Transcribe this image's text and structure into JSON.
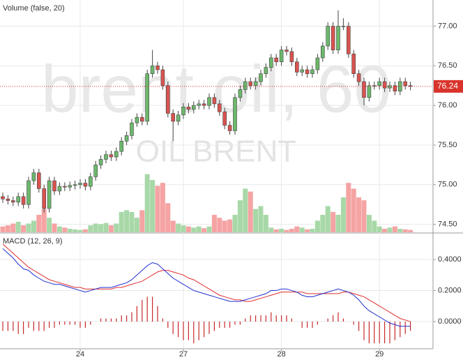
{
  "chart_data": {
    "type": "candlestick",
    "title": "Volume (false, 20)",
    "watermark": "brent oil, 60",
    "watermark_subtitle": "OIL BRENT",
    "macd_title": "MACD (12, 26, 9)",
    "categories": [
      null,
      null,
      null,
      null,
      null,
      null,
      null,
      null,
      null,
      null,
      null,
      null,
      null,
      null,
      null,
      "24",
      null,
      null,
      null,
      null,
      null,
      null,
      null,
      null,
      null,
      null,
      null,
      null,
      null,
      null,
      null,
      null,
      null,
      null,
      null,
      "27",
      null,
      null,
      null,
      null,
      null,
      null,
      null,
      null,
      null,
      null,
      null,
      null,
      null,
      null,
      null,
      null,
      null,
      null,
      "28",
      null,
      null,
      null,
      null,
      null,
      null,
      null,
      null,
      null,
      null,
      null,
      null,
      null,
      null,
      null,
      null,
      null,
      null,
      "29",
      null,
      null,
      null,
      null,
      null,
      null
    ],
    "open": [
      74.85,
      74.82,
      74.8,
      74.78,
      74.85,
      74.75,
      75.05,
      75.15,
      74.95,
      74.7,
      75.05,
      74.92,
      74.98,
      74.97,
      74.99,
      75.0,
      75.02,
      74.98,
      75.1,
      75.25,
      75.32,
      75.38,
      75.35,
      75.42,
      75.55,
      75.62,
      75.78,
      75.85,
      75.8,
      76.4,
      76.5,
      76.45,
      76.25,
      75.9,
      75.8,
      75.88,
      75.98,
      75.95,
      76.0,
      76.02,
      76.0,
      76.1,
      76.02,
      75.92,
      75.75,
      75.68,
      76.1,
      76.2,
      76.3,
      76.25,
      76.3,
      76.4,
      76.48,
      76.6,
      76.55,
      76.7,
      76.68,
      76.55,
      76.42,
      76.45,
      76.4,
      76.45,
      76.6,
      76.75,
      77.0,
      76.7,
      77.0,
      77.0,
      76.65,
      76.4,
      76.3,
      76.1,
      76.25,
      76.25,
      76.3,
      76.22,
      76.25,
      76.18,
      76.3,
      76.25
    ],
    "high": [
      74.9,
      74.87,
      74.85,
      74.9,
      74.9,
      75.1,
      75.2,
      75.2,
      75.0,
      75.1,
      75.1,
      75.03,
      75.03,
      75.04,
      75.05,
      75.07,
      75.07,
      75.15,
      75.3,
      75.37,
      75.43,
      75.43,
      75.47,
      75.6,
      75.67,
      75.83,
      75.9,
      75.9,
      76.45,
      76.7,
      76.55,
      76.5,
      76.3,
      75.95,
      75.93,
      76.03,
      76.03,
      76.05,
      76.07,
      76.07,
      76.15,
      76.15,
      76.07,
      75.97,
      75.8,
      76.15,
      76.25,
      76.35,
      76.35,
      76.35,
      76.45,
      76.53,
      76.65,
      76.65,
      76.75,
      76.75,
      76.73,
      76.6,
      76.5,
      76.5,
      76.5,
      76.65,
      76.8,
      77.05,
      77.05,
      77.2,
      77.1,
      77.05,
      76.7,
      76.45,
      76.35,
      76.3,
      76.3,
      76.35,
      76.35,
      76.3,
      76.3,
      76.35,
      76.35,
      76.3
    ],
    "low": [
      74.77,
      74.75,
      74.73,
      74.73,
      74.7,
      74.7,
      75.0,
      74.9,
      74.65,
      74.65,
      74.87,
      74.87,
      74.92,
      74.92,
      74.94,
      74.95,
      74.93,
      74.93,
      75.05,
      75.2,
      75.27,
      75.3,
      75.3,
      75.37,
      75.5,
      75.57,
      75.73,
      75.75,
      75.75,
      76.35,
      76.4,
      76.2,
      75.85,
      75.55,
      75.75,
      75.83,
      75.9,
      75.9,
      75.95,
      75.95,
      75.95,
      75.97,
      75.87,
      75.7,
      75.63,
      75.63,
      76.05,
      76.15,
      76.2,
      76.2,
      76.25,
      76.35,
      76.43,
      76.5,
      76.5,
      76.63,
      76.5,
      76.37,
      76.37,
      76.35,
      76.35,
      76.4,
      76.55,
      76.7,
      76.65,
      76.65,
      76.95,
      76.6,
      76.35,
      76.25,
      76.0,
      76.05,
      76.2,
      76.2,
      76.17,
      76.17,
      76.13,
      76.13,
      76.2,
      76.19
    ],
    "close": [
      74.82,
      74.8,
      74.78,
      74.85,
      74.75,
      75.05,
      75.15,
      74.95,
      74.7,
      75.05,
      74.92,
      74.98,
      74.97,
      74.99,
      75.0,
      75.02,
      74.98,
      75.1,
      75.25,
      75.32,
      75.38,
      75.35,
      75.42,
      75.55,
      75.62,
      75.78,
      75.85,
      75.8,
      76.4,
      76.5,
      76.45,
      76.25,
      75.9,
      75.8,
      75.88,
      75.98,
      75.95,
      76.0,
      76.02,
      76.0,
      76.1,
      76.02,
      75.92,
      75.75,
      75.68,
      76.1,
      76.2,
      76.3,
      76.25,
      76.3,
      76.4,
      76.48,
      76.6,
      76.55,
      76.7,
      76.68,
      76.55,
      76.42,
      76.45,
      76.4,
      76.45,
      76.6,
      76.75,
      77.0,
      76.7,
      77.0,
      77.0,
      76.65,
      76.4,
      76.3,
      76.1,
      76.25,
      76.25,
      76.3,
      76.22,
      76.25,
      76.18,
      76.3,
      76.25,
      76.24
    ],
    "volume": [
      10,
      12,
      15,
      18,
      12,
      15,
      20,
      30,
      40,
      25,
      15,
      10,
      8,
      6,
      5,
      4,
      5,
      12,
      15,
      14,
      16,
      12,
      15,
      35,
      38,
      35,
      25,
      38,
      100,
      90,
      80,
      85,
      50,
      20,
      15,
      12,
      10,
      8,
      10,
      7,
      10,
      30,
      25,
      20,
      22,
      30,
      55,
      75,
      70,
      40,
      45,
      30,
      8,
      5,
      6,
      4,
      6,
      10,
      8,
      5,
      6,
      20,
      30,
      45,
      35,
      30,
      60,
      85,
      75,
      60,
      55,
      30,
      20,
      10,
      6,
      8,
      10,
      6,
      5,
      4
    ],
    "vlim": [
      0,
      120
    ],
    "macd": [
      0.47,
      0.44,
      0.41,
      0.37,
      0.34,
      0.33,
      0.3,
      0.28,
      0.26,
      0.25,
      0.24,
      0.24,
      0.23,
      0.22,
      0.21,
      0.2,
      0.19,
      0.2,
      0.21,
      0.22,
      0.22,
      0.22,
      0.23,
      0.24,
      0.25,
      0.27,
      0.3,
      0.33,
      0.36,
      0.38,
      0.37,
      0.34,
      0.31,
      0.28,
      0.26,
      0.24,
      0.22,
      0.2,
      0.19,
      0.18,
      0.17,
      0.16,
      0.15,
      0.14,
      0.13,
      0.13,
      0.13,
      0.14,
      0.15,
      0.16,
      0.17,
      0.18,
      0.2,
      0.2,
      0.21,
      0.21,
      0.2,
      0.19,
      0.17,
      0.16,
      0.16,
      0.17,
      0.18,
      0.19,
      0.2,
      0.21,
      0.2,
      0.19,
      0.17,
      0.14,
      0.1,
      0.07,
      0.05,
      0.03,
      0.01,
      -0.01,
      -0.02,
      -0.03,
      -0.03,
      -0.03
    ],
    "signal": [
      0.5,
      0.47,
      0.44,
      0.41,
      0.38,
      0.35,
      0.33,
      0.31,
      0.29,
      0.27,
      0.26,
      0.25,
      0.24,
      0.23,
      0.22,
      0.22,
      0.21,
      0.21,
      0.21,
      0.21,
      0.21,
      0.21,
      0.22,
      0.22,
      0.23,
      0.24,
      0.25,
      0.26,
      0.28,
      0.3,
      0.32,
      0.33,
      0.33,
      0.32,
      0.31,
      0.3,
      0.28,
      0.27,
      0.25,
      0.23,
      0.21,
      0.19,
      0.17,
      0.16,
      0.15,
      0.14,
      0.14,
      0.13,
      0.13,
      0.14,
      0.15,
      0.16,
      0.17,
      0.18,
      0.19,
      0.19,
      0.19,
      0.19,
      0.19,
      0.18,
      0.18,
      0.18,
      0.18,
      0.18,
      0.18,
      0.18,
      0.19,
      0.19,
      0.18,
      0.17,
      0.16,
      0.14,
      0.12,
      0.1,
      0.08,
      0.06,
      0.04,
      0.02,
      0.01,
      0.0
    ],
    "histogram": [
      -0.06,
      -0.06,
      -0.06,
      -0.08,
      -0.08,
      -0.04,
      -0.06,
      -0.06,
      -0.06,
      -0.04,
      -0.04,
      -0.02,
      -0.02,
      -0.02,
      -0.02,
      -0.04,
      -0.04,
      -0.02,
      0,
      0.02,
      0.02,
      0.02,
      0.02,
      0.04,
      0.04,
      0.06,
      0.1,
      0.14,
      0.16,
      0.16,
      0.1,
      0.02,
      -0.04,
      -0.08,
      -0.1,
      -0.12,
      -0.12,
      -0.14,
      -0.12,
      -0.1,
      -0.08,
      -0.06,
      -0.04,
      -0.04,
      -0.04,
      -0.02,
      -0.02,
      0.02,
      0.04,
      0.04,
      0.04,
      0.04,
      0.06,
      0.04,
      0.04,
      0.04,
      0.02,
      0,
      -0.04,
      -0.04,
      -0.04,
      -0.02,
      0,
      0.02,
      0.04,
      0.06,
      0.02,
      0,
      -0.02,
      -0.06,
      -0.12,
      -0.14,
      -0.14,
      -0.14,
      -0.14,
      -0.14,
      -0.12,
      -0.1,
      -0.08,
      -0.06
    ],
    "last_price": 76.24,
    "ylim": [
      74.4,
      77.33
    ],
    "yticks": [
      {
        "value": 74.5,
        "label": "74.50"
      },
      {
        "value": 75,
        "label": "75.00"
      },
      {
        "value": 75.5,
        "label": "75.50"
      },
      {
        "value": 76,
        "label": "76.00"
      },
      {
        "value": 76.5,
        "label": "76.50"
      },
      {
        "value": 77,
        "label": "77.00"
      }
    ],
    "y2lim": [
      -0.175,
      0.562
    ],
    "y2ticks": [
      {
        "value": 0,
        "label": "0.0000"
      },
      {
        "value": 0.2,
        "label": "0.2000"
      },
      {
        "value": 0.4,
        "label": "0.4000"
      }
    ],
    "grid": true,
    "up_color": "#6cb86c",
    "down_color": "#d9534f",
    "volume_up_color": "#a8d8a8",
    "volume_down_color": "#f5a3a3",
    "macd_color": "#2030d0",
    "signal_color": "#e02c2c",
    "histogram_color": "#c82828"
  }
}
